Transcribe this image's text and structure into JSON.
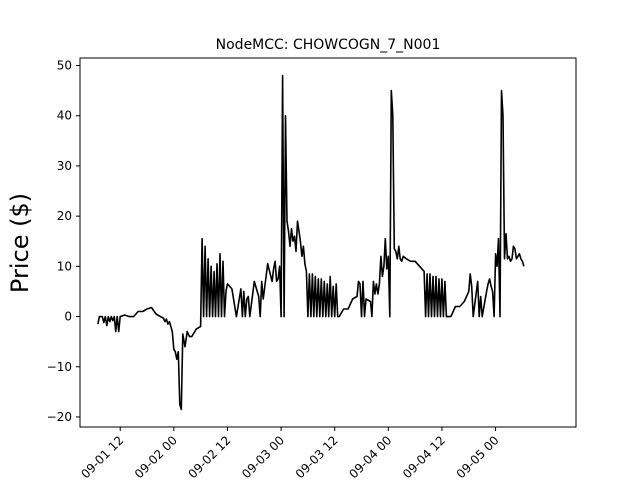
{
  "chart_data": {
    "type": "line",
    "title": "NodeMCC: CHOWCOGN_7_N001",
    "xlabel": "",
    "ylabel": "Price ($)",
    "xlim": [
      "2020-09-01 03:00",
      "2020-09-05 18:00"
    ],
    "ylim": [
      -22,
      51.5
    ],
    "x_tick_labels": [
      "09-01 12",
      "09-02 00",
      "09-02 12",
      "09-03 00",
      "09-03 12",
      "09-04 00",
      "09-04 12",
      "09-05 00"
    ],
    "x_ticks": [
      "2020-09-01 12:00",
      "2020-09-02 00:00",
      "2020-09-02 12:00",
      "2020-09-03 00:00",
      "2020-09-03 12:00",
      "2020-09-04 00:00",
      "2020-09-04 12:00",
      "2020-09-05 00:00"
    ],
    "y_ticks": [
      -20,
      -10,
      0,
      10,
      20,
      30,
      40,
      50
    ],
    "y_tick_labels": [
      "−20",
      "−10",
      "0",
      "10",
      "20",
      "30",
      "40",
      "50"
    ],
    "grid": false,
    "line_color": "#000000",
    "series": [
      {
        "x": [
          "2020-09-01 07:00",
          "2020-09-01 07:20",
          "2020-09-01 07:40",
          "2020-09-01 08:00",
          "2020-09-01 08:20",
          "2020-09-01 08:40",
          "2020-09-01 09:00",
          "2020-09-01 09:20",
          "2020-09-01 09:40",
          "2020-09-01 10:00",
          "2020-09-01 10:20",
          "2020-09-01 10:40",
          "2020-09-01 11:00",
          "2020-09-01 11:20",
          "2020-09-01 11:40",
          "2020-09-01 12:00",
          "2020-09-01 13:00",
          "2020-09-01 14:00",
          "2020-09-01 15:00",
          "2020-09-01 16:00",
          "2020-09-01 17:00",
          "2020-09-01 18:00",
          "2020-09-01 19:00",
          "2020-09-01 20:00",
          "2020-09-01 21:00",
          "2020-09-01 21:40",
          "2020-09-01 22:00",
          "2020-09-01 22:20",
          "2020-09-01 22:40",
          "2020-09-01 23:00",
          "2020-09-01 23:20",
          "2020-09-01 23:40",
          "2020-09-02 00:00",
          "2020-09-02 00:20",
          "2020-09-02 00:40",
          "2020-09-02 01:00",
          "2020-09-02 01:20",
          "2020-09-02 01:40",
          "2020-09-02 02:00",
          "2020-09-02 02:30",
          "2020-09-02 03:00",
          "2020-09-02 03:30",
          "2020-09-02 04:00",
          "2020-09-02 05:00",
          "2020-09-02 06:00",
          "2020-09-02 06:20",
          "2020-09-02 06:40",
          "2020-09-02 07:00",
          "2020-09-02 07:20",
          "2020-09-02 07:40",
          "2020-09-02 08:00",
          "2020-09-02 08:20",
          "2020-09-02 08:40",
          "2020-09-02 09:00",
          "2020-09-02 09:20",
          "2020-09-02 09:40",
          "2020-09-02 10:00",
          "2020-09-02 10:20",
          "2020-09-02 10:40",
          "2020-09-02 11:00",
          "2020-09-02 11:20",
          "2020-09-02 11:40",
          "2020-09-02 12:00",
          "2020-09-02 13:00",
          "2020-09-02 14:00",
          "2020-09-02 15:00",
          "2020-09-02 15:20",
          "2020-09-02 15:40",
          "2020-09-02 16:00",
          "2020-09-02 16:20",
          "2020-09-02 16:40",
          "2020-09-02 17:00",
          "2020-09-02 18:00",
          "2020-09-02 19:00",
          "2020-09-02 19:20",
          "2020-09-02 19:40",
          "2020-09-02 20:00",
          "2020-09-02 21:00",
          "2020-09-02 22:00",
          "2020-09-02 22:20",
          "2020-09-02 22:40",
          "2020-09-02 23:00",
          "2020-09-02 23:20",
          "2020-09-02 23:40",
          "2020-09-03 00:00",
          "2020-09-03 00:20",
          "2020-09-03 00:40",
          "2020-09-03 01:00",
          "2020-09-03 01:20",
          "2020-09-03 01:40",
          "2020-09-03 02:00",
          "2020-09-03 02:20",
          "2020-09-03 02:40",
          "2020-09-03 03:00",
          "2020-09-03 03:20",
          "2020-09-03 03:40",
          "2020-09-03 04:00",
          "2020-09-03 04:20",
          "2020-09-03 04:40",
          "2020-09-03 05:00",
          "2020-09-03 05:20",
          "2020-09-03 05:40",
          "2020-09-03 06:00",
          "2020-09-03 06:20",
          "2020-09-03 06:40",
          "2020-09-03 07:00",
          "2020-09-03 07:20",
          "2020-09-03 07:40",
          "2020-09-03 08:00",
          "2020-09-03 08:20",
          "2020-09-03 08:40",
          "2020-09-03 09:00",
          "2020-09-03 09:20",
          "2020-09-03 09:40",
          "2020-09-03 10:00",
          "2020-09-03 10:20",
          "2020-09-03 10:40",
          "2020-09-03 11:00",
          "2020-09-03 11:20",
          "2020-09-03 11:40",
          "2020-09-03 12:00",
          "2020-09-03 12:20",
          "2020-09-03 12:40",
          "2020-09-03 13:00",
          "2020-09-03 14:00",
          "2020-09-03 15:00",
          "2020-09-03 16:00",
          "2020-09-03 17:00",
          "2020-09-03 17:20",
          "2020-09-03 17:40",
          "2020-09-03 18:00",
          "2020-09-03 18:20",
          "2020-09-03 18:40",
          "2020-09-03 19:00",
          "2020-09-03 20:00",
          "2020-09-03 20:20",
          "2020-09-03 20:40",
          "2020-09-03 21:00",
          "2020-09-03 21:20",
          "2020-09-03 21:40",
          "2020-09-03 22:00",
          "2020-09-03 22:20",
          "2020-09-03 22:40",
          "2020-09-03 23:00",
          "2020-09-03 23:20",
          "2020-09-03 23:40",
          "2020-09-04 00:00",
          "2020-09-04 00:20",
          "2020-09-04 00:40",
          "2020-09-04 01:00",
          "2020-09-04 01:20",
          "2020-09-04 01:40",
          "2020-09-04 02:00",
          "2020-09-04 02:20",
          "2020-09-04 02:40",
          "2020-09-04 03:00",
          "2020-09-04 03:20",
          "2020-09-04 04:00",
          "2020-09-04 05:00",
          "2020-09-04 06:00",
          "2020-09-04 07:00",
          "2020-09-04 08:00",
          "2020-09-04 08:20",
          "2020-09-04 08:40",
          "2020-09-04 09:00",
          "2020-09-04 09:20",
          "2020-09-04 09:40",
          "2020-09-04 10:00",
          "2020-09-04 10:20",
          "2020-09-04 10:40",
          "2020-09-04 11:00",
          "2020-09-04 11:20",
          "2020-09-04 11:40",
          "2020-09-04 12:00",
          "2020-09-04 12:20",
          "2020-09-04 12:40",
          "2020-09-04 13:00",
          "2020-09-04 14:00",
          "2020-09-04 15:00",
          "2020-09-04 16:00",
          "2020-09-04 17:00",
          "2020-09-04 18:00",
          "2020-09-04 18:20",
          "2020-09-04 18:40",
          "2020-09-04 19:00",
          "2020-09-04 20:00",
          "2020-09-04 20:20",
          "2020-09-04 20:40",
          "2020-09-04 21:00",
          "2020-09-04 22:00",
          "2020-09-04 22:20",
          "2020-09-04 22:40",
          "2020-09-04 23:00",
          "2020-09-04 23:20",
          "2020-09-04 23:40",
          "2020-09-05 00:00",
          "2020-09-05 00:20",
          "2020-09-05 00:40",
          "2020-09-05 01:00",
          "2020-09-05 01:20",
          "2020-09-05 01:40",
          "2020-09-05 02:00",
          "2020-09-05 02:20",
          "2020-09-05 02:40",
          "2020-09-05 03:00",
          "2020-09-05 03:20",
          "2020-09-05 03:40",
          "2020-09-05 04:00",
          "2020-09-05 04:20",
          "2020-09-05 04:40",
          "2020-09-05 05:00",
          "2020-09-05 05:20",
          "2020-09-05 05:40",
          "2020-09-05 06:00",
          "2020-09-05 06:20"
        ],
        "y": [
          -1.5,
          0,
          0,
          0,
          -1.2,
          0,
          -1.8,
          0,
          -1,
          0,
          -0.8,
          0,
          -3,
          0,
          -3,
          0,
          0.3,
          0,
          0,
          1,
          1,
          1.5,
          1.8,
          0.5,
          0,
          -0.3,
          -1,
          -0.5,
          -1.5,
          -1,
          -2,
          -3,
          -6.5,
          -7,
          -8.5,
          -7,
          -17.5,
          -18.5,
          -3.5,
          -6,
          -3,
          -4,
          -4,
          -2.5,
          -2,
          15.5,
          0,
          14,
          0,
          11.5,
          0,
          10,
          0,
          9,
          0,
          10.5,
          0,
          12.5,
          0,
          11,
          0,
          5,
          6.5,
          5.5,
          0,
          5.5,
          0,
          5,
          0,
          3.5,
          4,
          0,
          7,
          4,
          0,
          7,
          3.5,
          10.5,
          7,
          9.5,
          11,
          7,
          7.5,
          10,
          0,
          48,
          0,
          40,
          19,
          17,
          14,
          17.5,
          15,
          16,
          13,
          19,
          17,
          15,
          12,
          14,
          10.5,
          9,
          0,
          8.5,
          0,
          8.5,
          0,
          8,
          0,
          7.5,
          0,
          7.5,
          0,
          7,
          0,
          6.5,
          0,
          8,
          0,
          6,
          0,
          6.5,
          0,
          0,
          1.5,
          1.5,
          3.5,
          4,
          7,
          6.5,
          0,
          7,
          0,
          3.5,
          3,
          0,
          7,
          4.5,
          6.5,
          4.5,
          6.5,
          12,
          8,
          10,
          15.5,
          9.5,
          12,
          0,
          45,
          40,
          13.5,
          13,
          11.5,
          14,
          11.5,
          11,
          12,
          11.5,
          11,
          11,
          10,
          9,
          0,
          8.5,
          0,
          8.5,
          0,
          8,
          0,
          8,
          0,
          7.5,
          0,
          7.5,
          0,
          7,
          0,
          0,
          2,
          2,
          3,
          5,
          8.5,
          6,
          0,
          7,
          0,
          4,
          0,
          5,
          6.5,
          7.5,
          6,
          5,
          0,
          12.5,
          10,
          15.5,
          0,
          45,
          40,
          11.5,
          16.5,
          11.5,
          12,
          11,
          11.5,
          14,
          13.5,
          11.5,
          12,
          12.5,
          11.5,
          11,
          10
        ]
      }
    ]
  }
}
